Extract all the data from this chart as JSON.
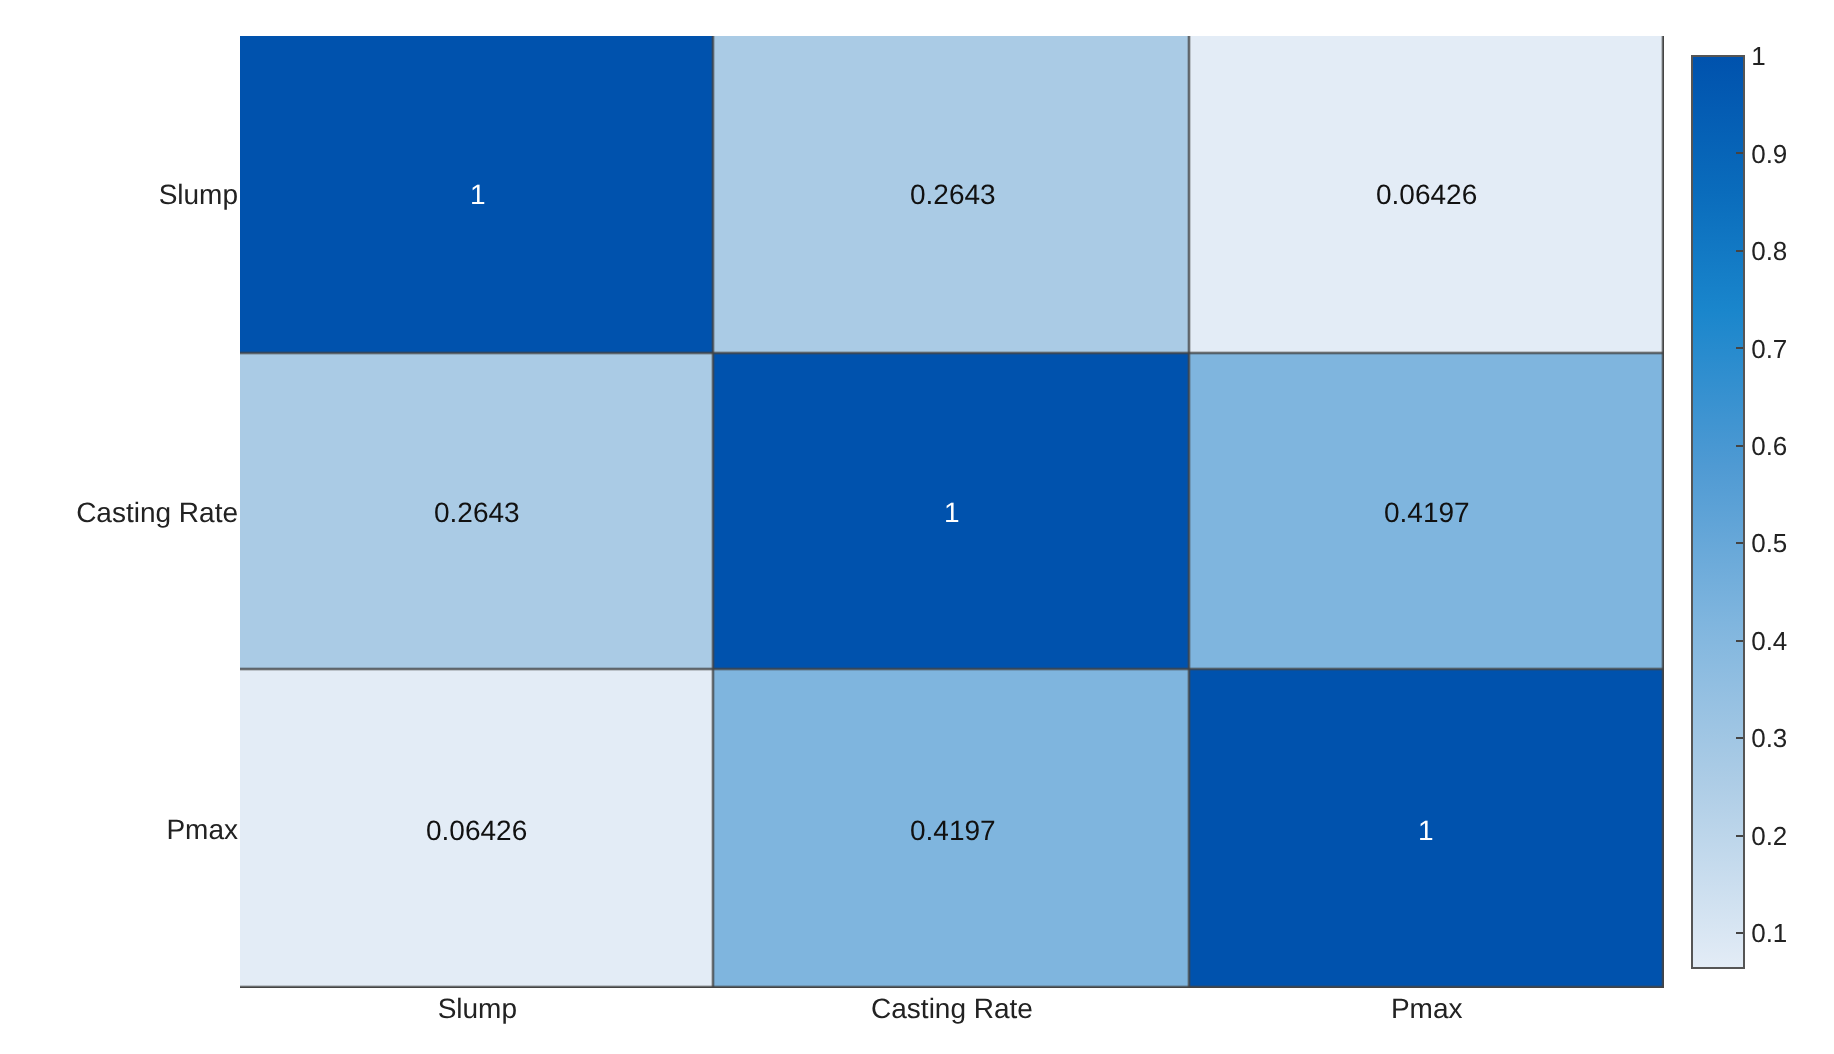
{
  "chart_data": {
    "type": "heatmap",
    "categories": [
      "Slump",
      "Casting Rate",
      "Pmax"
    ],
    "y_categories": [
      "Slump",
      "Casting Rate",
      "Pmax"
    ],
    "cells": [
      [
        1,
        0.2643,
        0.06426
      ],
      [
        0.2643,
        1,
        0.4197
      ],
      [
        0.06426,
        0.4197,
        1
      ]
    ],
    "data_labels": true,
    "clim": [
      0.06426,
      1
    ],
    "cticks": [
      0.1,
      0.2,
      0.3,
      0.4,
      0.5,
      0.6,
      0.7,
      0.8,
      0.9,
      1
    ]
  }
}
